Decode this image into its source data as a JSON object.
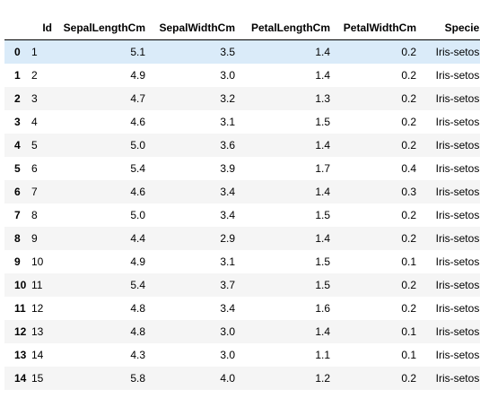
{
  "table": {
    "columns": [
      "",
      "Id",
      "SepalLengthCm",
      "SepalWidthCm",
      "PetalLengthCm",
      "PetalWidthCm",
      "Species"
    ],
    "rows": [
      {
        "index": "0",
        "id": "1",
        "sepal_length": "5.1",
        "sepal_width": "3.5",
        "petal_length": "1.4",
        "petal_width": "0.2",
        "species": "Iris-setosa"
      },
      {
        "index": "1",
        "id": "2",
        "sepal_length": "4.9",
        "sepal_width": "3.0",
        "petal_length": "1.4",
        "petal_width": "0.2",
        "species": "Iris-setosa"
      },
      {
        "index": "2",
        "id": "3",
        "sepal_length": "4.7",
        "sepal_width": "3.2",
        "petal_length": "1.3",
        "petal_width": "0.2",
        "species": "Iris-setosa"
      },
      {
        "index": "3",
        "id": "4",
        "sepal_length": "4.6",
        "sepal_width": "3.1",
        "petal_length": "1.5",
        "petal_width": "0.2",
        "species": "Iris-setosa"
      },
      {
        "index": "4",
        "id": "5",
        "sepal_length": "5.0",
        "sepal_width": "3.6",
        "petal_length": "1.4",
        "petal_width": "0.2",
        "species": "Iris-setosa"
      },
      {
        "index": "5",
        "id": "6",
        "sepal_length": "5.4",
        "sepal_width": "3.9",
        "petal_length": "1.7",
        "petal_width": "0.4",
        "species": "Iris-setosa"
      },
      {
        "index": "6",
        "id": "7",
        "sepal_length": "4.6",
        "sepal_width": "3.4",
        "petal_length": "1.4",
        "petal_width": "0.3",
        "species": "Iris-setosa"
      },
      {
        "index": "7",
        "id": "8",
        "sepal_length": "5.0",
        "sepal_width": "3.4",
        "petal_length": "1.5",
        "petal_width": "0.2",
        "species": "Iris-setosa"
      },
      {
        "index": "8",
        "id": "9",
        "sepal_length": "4.4",
        "sepal_width": "2.9",
        "petal_length": "1.4",
        "petal_width": "0.2",
        "species": "Iris-setosa"
      },
      {
        "index": "9",
        "id": "10",
        "sepal_length": "4.9",
        "sepal_width": "3.1",
        "petal_length": "1.5",
        "petal_width": "0.1",
        "species": "Iris-setosa"
      },
      {
        "index": "10",
        "id": "11",
        "sepal_length": "5.4",
        "sepal_width": "3.7",
        "petal_length": "1.5",
        "petal_width": "0.2",
        "species": "Iris-setosa"
      },
      {
        "index": "11",
        "id": "12",
        "sepal_length": "4.8",
        "sepal_width": "3.4",
        "petal_length": "1.6",
        "petal_width": "0.2",
        "species": "Iris-setosa"
      },
      {
        "index": "12",
        "id": "13",
        "sepal_length": "4.8",
        "sepal_width": "3.0",
        "petal_length": "1.4",
        "petal_width": "0.1",
        "species": "Iris-setosa"
      },
      {
        "index": "13",
        "id": "14",
        "sepal_length": "4.3",
        "sepal_width": "3.0",
        "petal_length": "1.1",
        "petal_width": "0.1",
        "species": "Iris-setosa"
      },
      {
        "index": "14",
        "id": "15",
        "sepal_length": "5.8",
        "sepal_width": "4.0",
        "petal_length": "1.2",
        "petal_width": "0.2",
        "species": "Iris-setosa"
      }
    ]
  },
  "colors": {
    "selected_row": "#daebf9",
    "striped_row": "#f5f5f5"
  }
}
